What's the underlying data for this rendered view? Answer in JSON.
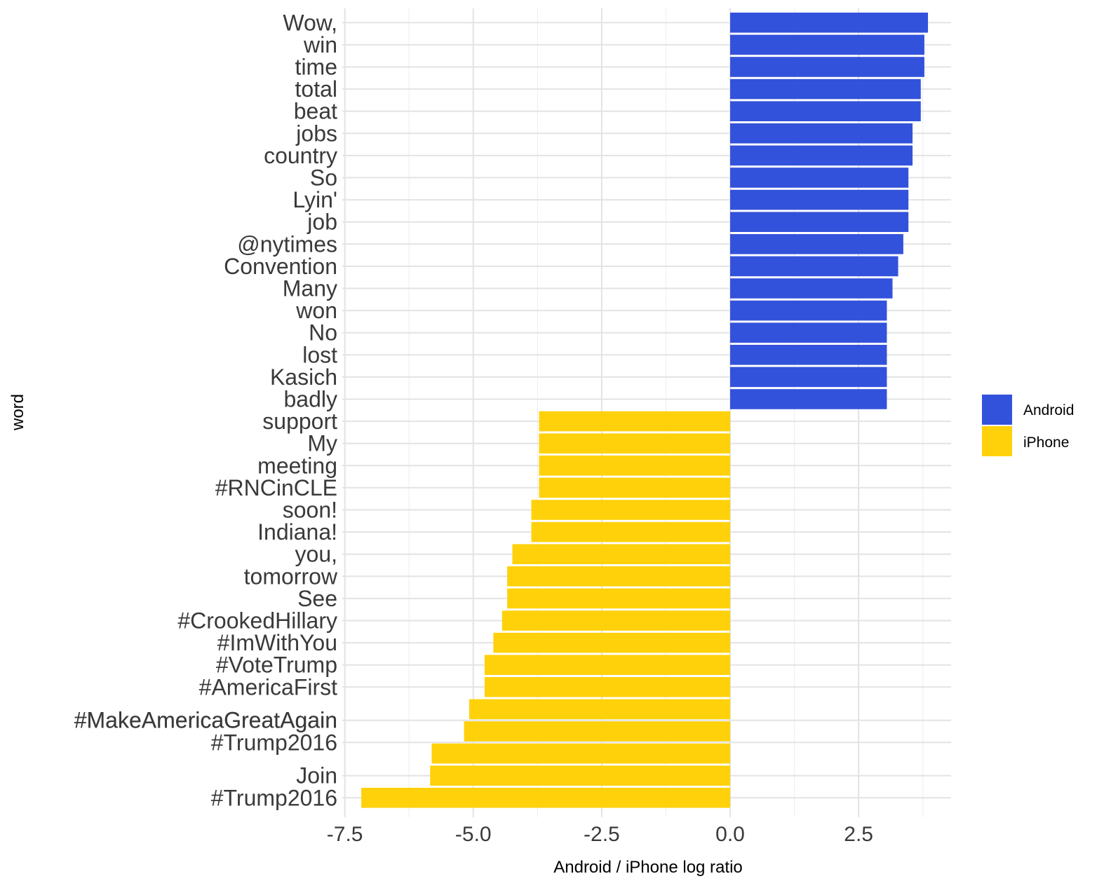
{
  "chart_data": {
    "type": "bar",
    "orientation": "horizontal",
    "xlabel": "Android / iPhone log ratio",
    "ylabel": "word",
    "xlim": [
      -7.55,
      4.3
    ],
    "x_ticks": [
      -7.5,
      -5.0,
      -2.5,
      0.0,
      2.5
    ],
    "x_tick_labels": [
      "-7.5",
      "-5.0",
      "-2.5",
      "0.0",
      "2.5"
    ],
    "grid": true,
    "legend_position": "right",
    "series": [
      {
        "name": "Android",
        "color": "#3352DB"
      },
      {
        "name": "iPhone",
        "color": "#FFD10A"
      }
    ],
    "categories": [
      "Wow,",
      "win",
      "time",
      "total",
      "beat",
      "jobs",
      "country",
      "So",
      "Lyin'",
      "job",
      "@nytimes",
      "Convention",
      "Many",
      "won",
      "No",
      "lost",
      "Kasich",
      "badly",
      "support",
      "My",
      "meeting",
      "#RNCinCLE",
      "soon!",
      "Indiana!",
      "you,",
      "tomorrow",
      "See",
      "#CrookedHillary",
      "#ImWithYou",
      "#VoteTrump",
      "#AmericaFirst",
      "#MakeAmericaGreatAgain",
      "#MakeAmericaGreatAgain",
      "#Trump2016",
      "Join",
      "#Trump2016"
    ],
    "values": [
      3.85,
      3.78,
      3.78,
      3.71,
      3.71,
      3.55,
      3.55,
      3.47,
      3.47,
      3.47,
      3.37,
      3.27,
      3.16,
      3.05,
      3.05,
      3.05,
      3.05,
      3.05,
      -3.72,
      -3.72,
      -3.72,
      -3.72,
      -3.87,
      -3.87,
      -4.24,
      -4.34,
      -4.34,
      -4.44,
      -4.61,
      -4.78,
      -4.78,
      -5.08,
      -5.18,
      -5.81,
      -5.84,
      -7.18
    ],
    "label_rows": [
      0,
      1,
      2,
      3,
      4,
      5,
      6,
      7,
      8,
      9,
      10,
      11,
      12,
      13,
      14,
      15,
      16,
      17,
      18,
      19,
      20,
      21,
      22,
      23,
      24,
      25,
      26,
      27,
      28,
      29,
      30,
      31.5,
      31.5,
      32.5,
      34,
      35
    ]
  }
}
